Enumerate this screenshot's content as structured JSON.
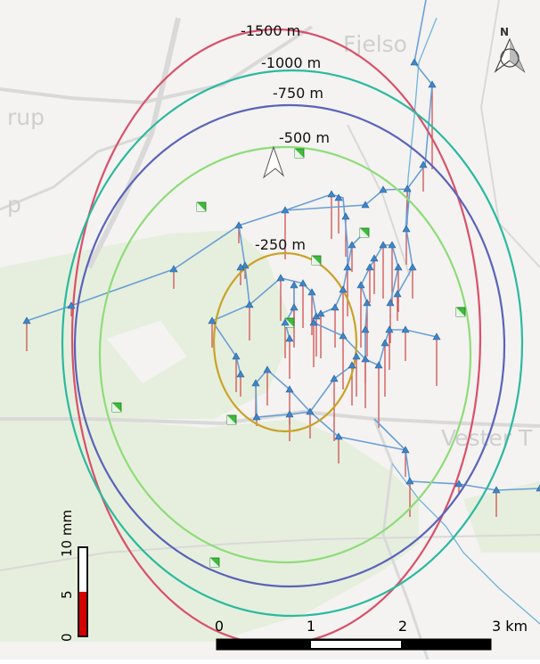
{
  "map_labels": {
    "fjelso": "Fjelso",
    "rup": "rup",
    "p": "p",
    "vester": "Vester T"
  },
  "contours": [
    {
      "label": "-1500 m",
      "color": "#d9506a"
    },
    {
      "label": "-1000 m",
      "color": "#2bb9a0"
    },
    {
      "label": "-750 m",
      "color": "#5a63b8"
    },
    {
      "label": "-500 m",
      "color": "#8fdc7a"
    },
    {
      "label": "-250 m",
      "color": "#c9a227"
    }
  ],
  "north_label": "N",
  "scale_bar": {
    "ticks": [
      "0",
      "1",
      "2",
      "3 km"
    ]
  },
  "legend": {
    "ticks": [
      "0",
      "5",
      "10 mm"
    ],
    "max": 10,
    "fill_value": 5,
    "fill_color": "#d40000"
  },
  "colors": {
    "water": "#6fb3d9",
    "forest": "#e6efdd",
    "network": "#6a9fd6",
    "station": "#3f86c9",
    "well": "#3dbb3d",
    "displacement": "#d05050"
  }
}
